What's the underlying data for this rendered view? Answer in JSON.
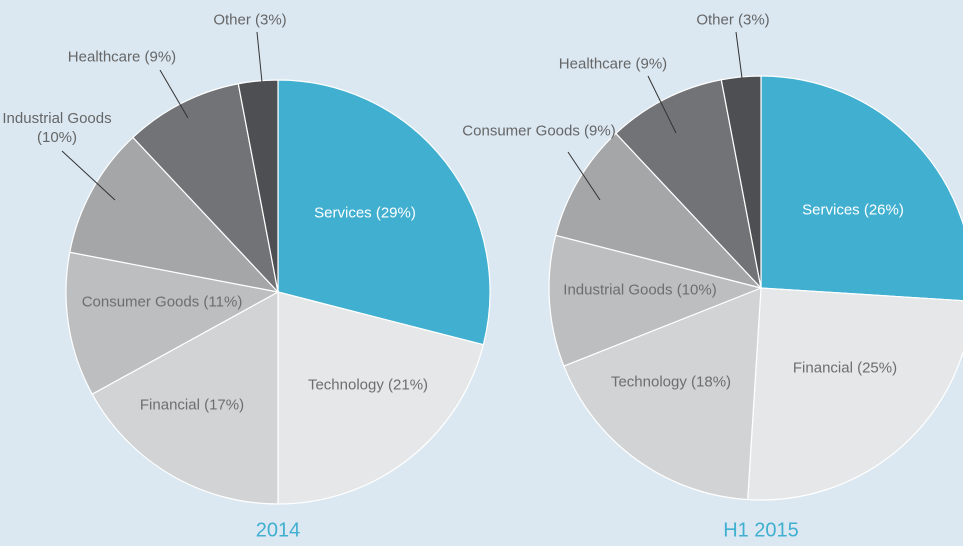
{
  "chart_data": [
    {
      "type": "pie",
      "title": "2014",
      "values": [
        29,
        21,
        17,
        11,
        10,
        9,
        3
      ],
      "value_labels": [
        "Services (29%)",
        "Technology (21%)",
        "Financial (17%)",
        "Consumer Goods (11%)",
        "Industrial Goods (10%)",
        "Healthcare (9%)",
        "Other (3%)"
      ],
      "colors": [
        "#41afd0",
        "#e6e7e8",
        "#d2d3d4",
        "#bdbec0",
        "#a5a6a8",
        "#727376",
        "#4e4f52"
      ]
    },
    {
      "type": "pie",
      "title": "H1 2015",
      "values": [
        26,
        25,
        18,
        10,
        9,
        9,
        3
      ],
      "value_labels": [
        "Services (26%)",
        "Financial (25%)",
        "Technology (18%)",
        "Industrial Goods (10%)",
        "Consumer Goods (9%)",
        "Healthcare (9%)",
        "Other (3%)"
      ],
      "colors": [
        "#41afd0",
        "#e6e7e8",
        "#d2d3d4",
        "#bdbec0",
        "#a5a6a8",
        "#727376",
        "#4e4f52"
      ]
    }
  ]
}
